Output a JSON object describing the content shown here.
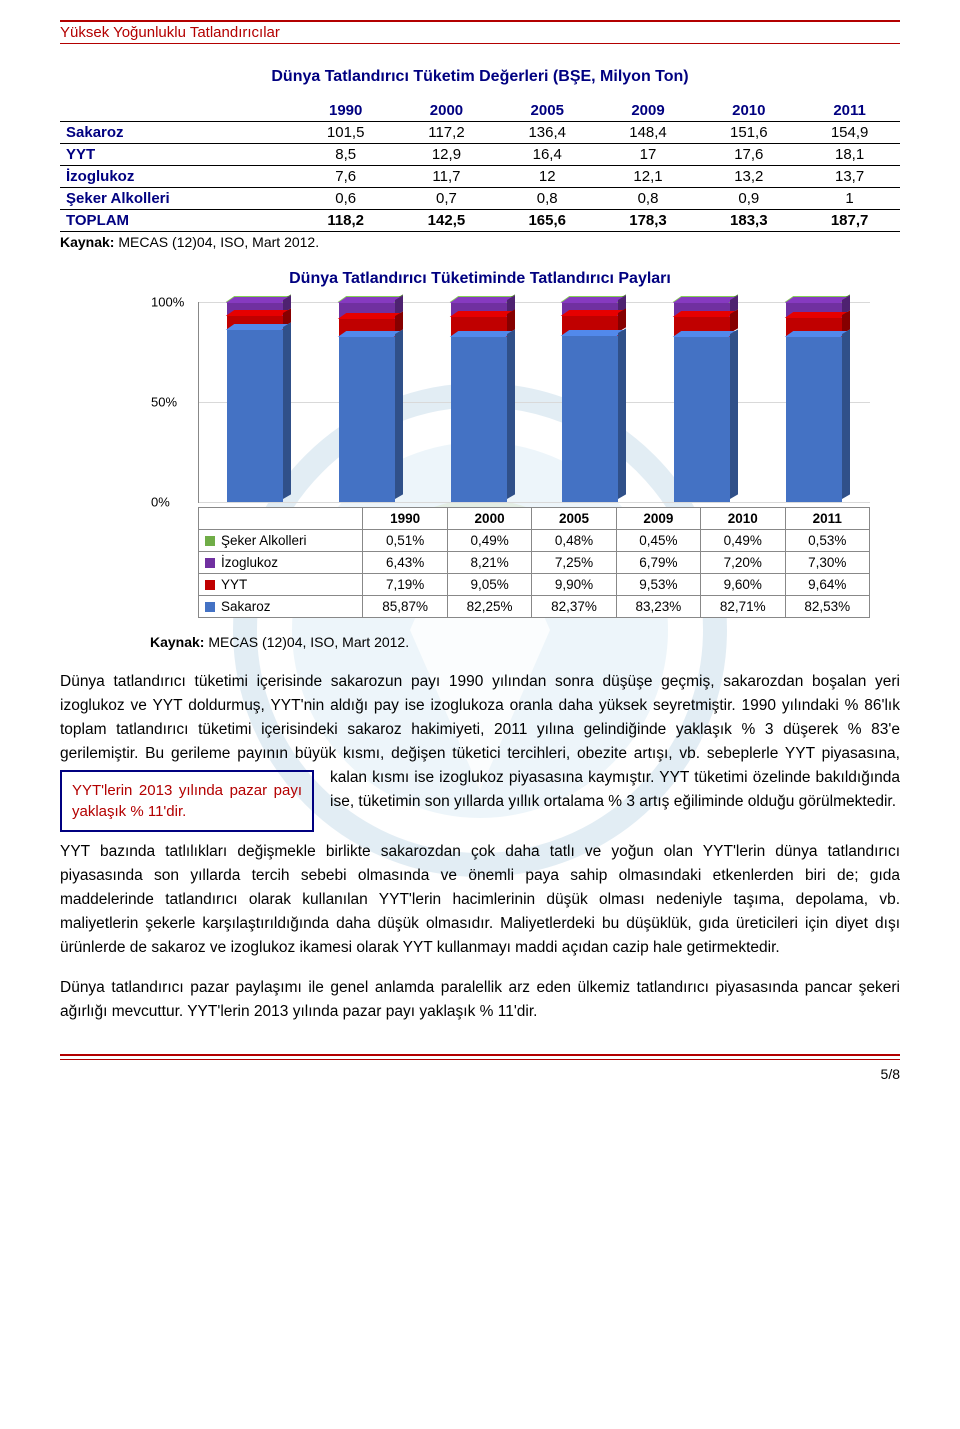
{
  "header": {
    "title": "Yüksek Yoğunluklu Tatlandırıcılar"
  },
  "table1": {
    "title": "Dünya Tatlandırıcı Tüketim Değerleri (BŞE, Milyon Ton)",
    "columns": [
      "",
      "1990",
      "2000",
      "2005",
      "2009",
      "2010",
      "2011"
    ],
    "rows": [
      {
        "label": "Sakaroz",
        "vals": [
          "101,5",
          "117,2",
          "136,4",
          "148,4",
          "151,6",
          "154,9"
        ]
      },
      {
        "label": "YYT",
        "vals": [
          "8,5",
          "12,9",
          "16,4",
          "17",
          "17,6",
          "18,1"
        ]
      },
      {
        "label": "İzoglukoz",
        "vals": [
          "7,6",
          "11,7",
          "12",
          "12,1",
          "13,2",
          "13,7"
        ]
      },
      {
        "label": "Şeker Alkolleri",
        "vals": [
          "0,6",
          "0,7",
          "0,8",
          "0,8",
          "0,9",
          "1"
        ]
      },
      {
        "label": "TOPLAM",
        "vals": [
          "118,2",
          "142,5",
          "165,6",
          "178,3",
          "183,3",
          "187,7"
        ],
        "total": true
      }
    ],
    "source_label": "Kaynak:",
    "source_text": " MECAS (12)04, ISO, Mart 2012."
  },
  "chart": {
    "title": "Dünya Tatlandırıcı Tüketiminde Tatlandırıcı Payları",
    "type": "stacked-bar-3d",
    "ylim": [
      0,
      100
    ],
    "yticks": [
      "0%",
      "50%",
      "100%"
    ],
    "categories": [
      "1990",
      "2000",
      "2005",
      "2009",
      "2010",
      "2011"
    ],
    "series": [
      {
        "name": "Şeker Alkolleri",
        "color": "#70ad47",
        "values": [
          "0,51%",
          "0,49%",
          "0,48%",
          "0,45%",
          "0,49%",
          "0,53%"
        ],
        "numeric": [
          0.51,
          0.49,
          0.48,
          0.45,
          0.49,
          0.53
        ]
      },
      {
        "name": "İzoglukoz",
        "color": "#7030a0",
        "values": [
          "6,43%",
          "8,21%",
          "7,25%",
          "6,79%",
          "7,20%",
          "7,30%"
        ],
        "numeric": [
          6.43,
          8.21,
          7.25,
          6.79,
          7.2,
          7.3
        ]
      },
      {
        "name": "YYT",
        "color": "#c00000",
        "values": [
          "7,19%",
          "9,05%",
          "9,90%",
          "9,53%",
          "9,60%",
          "9,64%"
        ],
        "numeric": [
          7.19,
          9.05,
          9.9,
          9.53,
          9.6,
          9.64
        ]
      },
      {
        "name": "Sakaroz",
        "color": "#4472c4",
        "values": [
          "85,87%",
          "82,25%",
          "82,37%",
          "83,23%",
          "82,71%",
          "82,53%"
        ],
        "numeric": [
          85.87,
          82.25,
          82.37,
          83.23,
          82.71,
          82.53
        ]
      }
    ],
    "source_label": "Kaynak:",
    "source_text": " MECAS (12)04, ISO, Mart 2012."
  },
  "callout": "YYT'lerin 2013 yılında pazar payı yaklaşık % 11'dir.",
  "para1": "Dünya tatlandırıcı tüketimi içerisinde sakarozun payı 1990 yılından sonra düşüşe geçmiş, sakarozdan boşalan yeri izoglukoz ve YYT doldurmuş, YYT'nin aldığı pay ise izoglukoza oranla daha yüksek seyretmiştir. 1990 yılındaki % 86'lık toplam tatlandırıcı tüketimi içerisindeki sakaroz hakimiyeti, 2011 yılına gelindiğinde yaklaşık % 3 düşerek % 83'e gerilemiştir. Bu gerileme payının büyük kısmı, değişen tüketici tercihleri, obezite artışı, vb. sebeplerle YYT piyasasına, kalan kısmı ise izoglukoz piyasasına kaymıştır. YYT tüketimi özelinde bakıldığında ise, tüketimin son yıllarda yıllık ortalama % 3 artış eğiliminde olduğu görülmektedir.",
  "para2": "YYT bazında tatlılıkları değişmekle birlikte sakarozdan çok daha tatlı ve yoğun olan YYT'lerin dünya tatlandırıcı piyasasında son yıllarda tercih sebebi olmasında ve önemli paya sahip olmasındaki etkenlerden biri de; gıda maddelerinde tatlandırıcı olarak kullanılan YYT'lerin hacimlerinin düşük olması nedeniyle taşıma, depolama, vb. maliyetlerin şekerle karşılaştırıldığında daha düşük olmasıdır. Maliyetlerdeki bu düşüklük, gıda üreticileri için diyet dışı ürünlerde de sakaroz ve izoglukoz ikamesi olarak YYT kullanmayı maddi açıdan cazip hale getirmektedir.",
  "para3": "Dünya tatlandırıcı pazar paylaşımı ile genel anlamda paralellik arz eden ülkemiz tatlandırıcı piyasasında pancar şekeri ağırlığı mevcuttur. YYT'lerin 2013 yılında pazar payı yaklaşık % 11'dir.",
  "pagenum": "5/8"
}
